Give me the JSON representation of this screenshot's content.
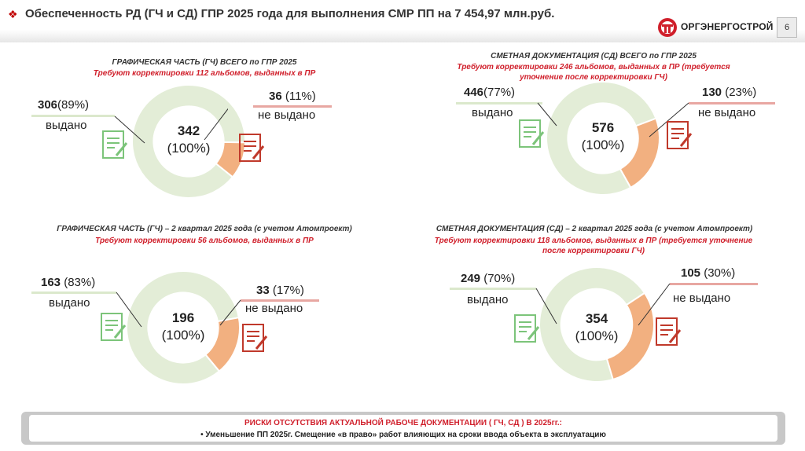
{
  "header": {
    "title": "Обеспеченность РД (ГЧ и СД) ГПР 2025 года для выполнения СМР ПП на 7 454,97 млн.руб.",
    "logo_text": "ОРГЭНЕРГОСТРОЙ",
    "page_number": "6"
  },
  "colors": {
    "issued": "#e3edd7",
    "not_issued": "#f2b080",
    "accent_red": "#d01f2b"
  },
  "chart_data": [
    {
      "type": "pie",
      "title": "ГРАФИЧЕСКАЯ ЧАСТЬ (ГЧ) ВСЕГО по ГПР 2025",
      "subtitle": "Требуют корректировки 112 альбомов, выданных в ПР",
      "total_value": "342",
      "total_pct": "(100%)",
      "categories": [
        "выдано",
        "не выдано"
      ],
      "values": [
        306,
        36
      ],
      "issued_value": "306",
      "issued_pct": "(89%)",
      "issued_label": "выдано",
      "not_issued_value": "36",
      "not_issued_pct": "(11%)",
      "not_issued_label": "не выдано"
    },
    {
      "type": "pie",
      "title": "СМЕТНАЯ ДОКУМЕНТАЦИЯ (СД) ВСЕГО по ГПР 2025",
      "subtitle": "Требуют корректировки 246 альбомов, выданных в ПР (требуется уточнение после корректировки ГЧ)",
      "total_value": "576",
      "total_pct": "(100%)",
      "categories": [
        "выдано",
        "не выдано"
      ],
      "values": [
        446,
        130
      ],
      "issued_value": "446",
      "issued_pct": "(77%)",
      "issued_label": "выдано",
      "not_issued_value": "130",
      "not_issued_pct": "(23%)",
      "not_issued_label": "не выдано"
    },
    {
      "type": "pie",
      "title": "ГРАФИЧЕСКАЯ ЧАСТЬ (ГЧ) – 2 квартал 2025 года (с учетом Атомпроект)",
      "subtitle": "Требуют корректировки 56 альбомов, выданных в ПР",
      "total_value": "196",
      "total_pct": "(100%)",
      "categories": [
        "выдано",
        "не выдано"
      ],
      "values": [
        163,
        33
      ],
      "issued_value": "163",
      "issued_pct": "(83%)",
      "issued_label": "выдано",
      "not_issued_value": "33",
      "not_issued_pct": "(17%)",
      "not_issued_label": "не выдано"
    },
    {
      "type": "pie",
      "title": "СМЕТНАЯ ДОКУМЕНТАЦИЯ (СД) – 2 квартал 2025 года (с учетом Атомпроект)",
      "subtitle": "Требуют корректировки 118 альбомов, выданных в ПР (требуется уточнение после корректировки ГЧ)",
      "total_value": "354",
      "total_pct": "(100%)",
      "categories": [
        "выдано",
        "не выдано"
      ],
      "values": [
        249,
        105
      ],
      "issued_value": "249",
      "issued_pct": "(70%)",
      "issued_label": "выдано",
      "not_issued_value": "105",
      "not_issued_pct": "(30%)",
      "not_issued_label": "не выдано"
    }
  ],
  "risk": {
    "title": "РИСКИ ОТСУТСТВИЯ АКТУАЛЬНОЙ РАБОЧЕ ДОКУМЕНТАЦИИ ( ГЧ, СД ) В 2025гг.:",
    "text": "•  Уменьшение ПП 2025г. Смещение «в право» работ влияющих на сроки ввода объекта в эксплуатацию"
  }
}
